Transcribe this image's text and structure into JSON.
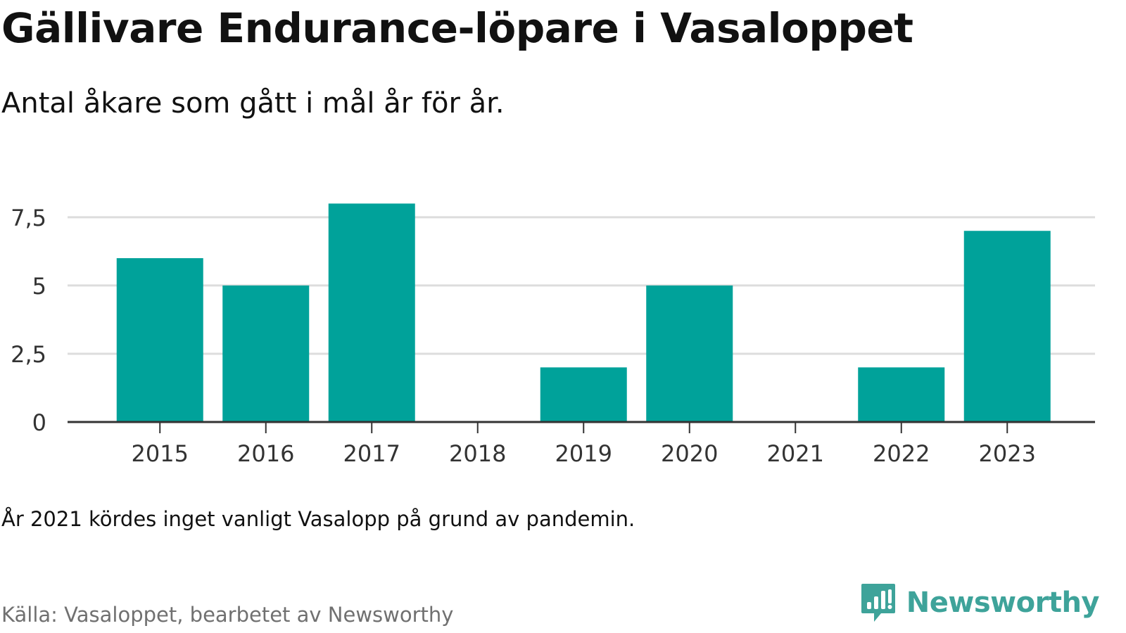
{
  "title": "Gällivare Endurance-löpare i Vasaloppet",
  "subtitle": "Antal åkare som gått i mål år för år.",
  "note": "År 2021 kördes inget vanligt Vasalopp på grund av pandemin.",
  "source": "Källa: Vasaloppet, bearbetet av Newsworthy",
  "brand": {
    "name": "Newsworthy",
    "icon": "newsworthy-chart-bubble-icon",
    "color": "#3ea39a"
  },
  "colors": {
    "bar": "#00a29a",
    "grid": "#dddddd",
    "axis": "#333333",
    "tick_text": "#333333"
  },
  "chart_data": {
    "type": "bar",
    "categories": [
      "2015",
      "2016",
      "2017",
      "2018",
      "2019",
      "2020",
      "2021",
      "2022",
      "2023"
    ],
    "values": [
      6,
      5,
      8,
      0,
      2,
      5,
      0,
      2,
      7
    ],
    "ylim": [
      0,
      8.5
    ],
    "yticks": [
      0,
      2.5,
      5,
      7.5
    ],
    "ytick_labels": [
      "0",
      "2,5",
      "5",
      "7,5"
    ],
    "grid": true,
    "legend": "none",
    "xlabel": "",
    "ylabel": ""
  }
}
